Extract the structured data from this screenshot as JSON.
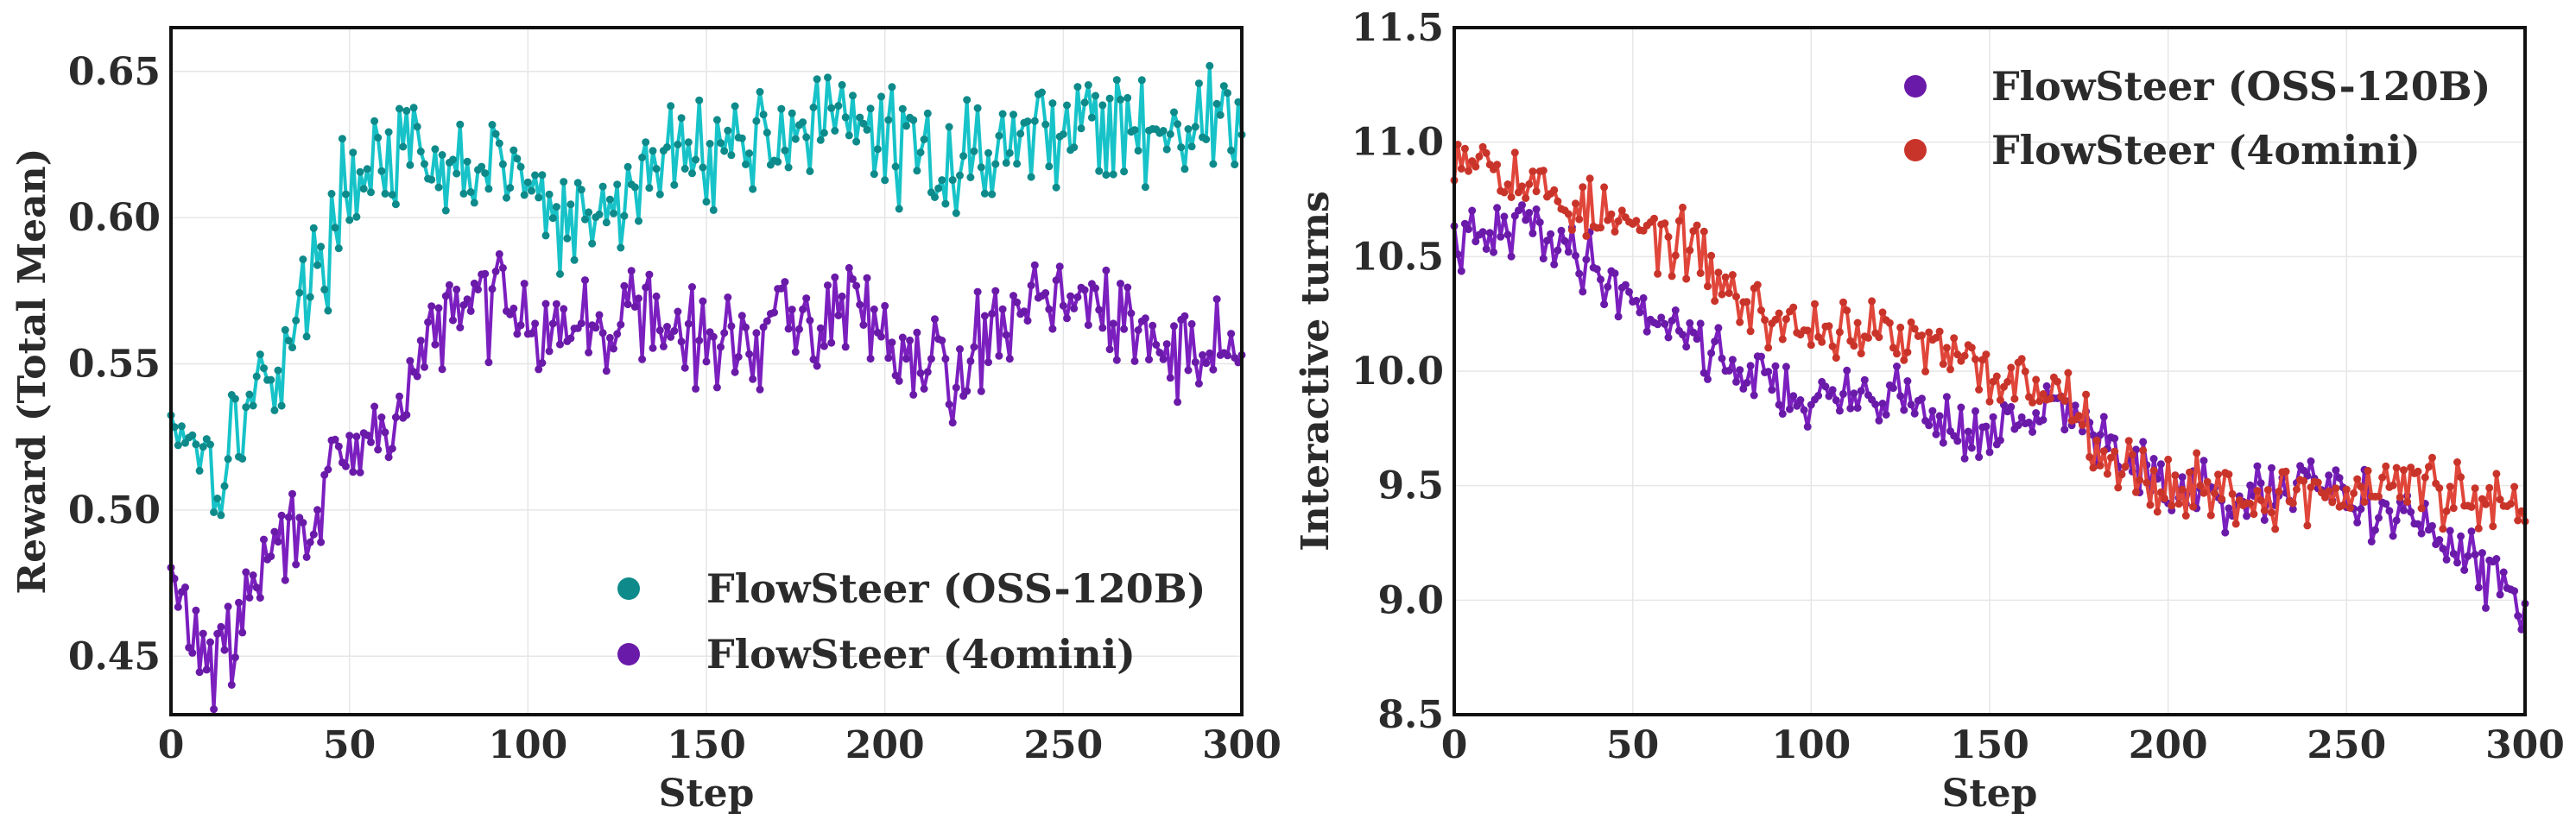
{
  "chart_data": [
    {
      "type": "line",
      "xlabel": "Step",
      "ylabel": "Reward (Total Mean)",
      "xlim": [
        0,
        300
      ],
      "ylim": [
        0.43,
        0.665
      ],
      "xticks": [
        0,
        50,
        100,
        150,
        200,
        250,
        300
      ],
      "xtick_labels": [
        "0",
        "50",
        "100",
        "150",
        "200",
        "250",
        "300"
      ],
      "yticks": [
        0.45,
        0.5,
        0.55,
        0.6,
        0.65
      ],
      "ytick_labels": [
        "0.45",
        "0.50",
        "0.55",
        "0.60",
        "0.65"
      ],
      "grid": true,
      "legend_position": "bottom-right",
      "series": [
        {
          "name": "FlowSteer (OSS-120B)",
          "line_color": "#17c3c8",
          "marker_color": "#0e8a8a",
          "anchors": [
            [
              0,
              0.532
            ],
            [
              5,
              0.528
            ],
            [
              10,
              0.52
            ],
            [
              14,
              0.512
            ],
            [
              18,
              0.53
            ],
            [
              25,
              0.54
            ],
            [
              32,
              0.555
            ],
            [
              40,
              0.58
            ],
            [
              45,
              0.596
            ],
            [
              50,
              0.61
            ],
            [
              55,
              0.622
            ],
            [
              60,
              0.62
            ],
            [
              65,
              0.622
            ],
            [
              75,
              0.612
            ],
            [
              85,
              0.618
            ],
            [
              95,
              0.616
            ],
            [
              100,
              0.612
            ],
            [
              105,
              0.603
            ],
            [
              110,
              0.596
            ],
            [
              115,
              0.596
            ],
            [
              120,
              0.6
            ],
            [
              130,
              0.61
            ],
            [
              140,
              0.622
            ],
            [
              150,
              0.625
            ],
            [
              160,
              0.625
            ],
            [
              170,
              0.63
            ],
            [
              180,
              0.632
            ],
            [
              190,
              0.63
            ],
            [
              200,
              0.63
            ],
            [
              205,
              0.622
            ],
            [
              210,
              0.62
            ],
            [
              220,
              0.62
            ],
            [
              230,
              0.623
            ],
            [
              240,
              0.628
            ],
            [
              250,
              0.632
            ],
            [
              255,
              0.637
            ],
            [
              260,
              0.632
            ],
            [
              265,
              0.627
            ],
            [
              270,
              0.63
            ],
            [
              280,
              0.633
            ],
            [
              290,
              0.632
            ],
            [
              300,
              0.633
            ]
          ],
          "noise": 0.009,
          "seed": 17
        },
        {
          "name": "FlowSteer (4omini)",
          "line_color": "#7b1fbf",
          "marker_color": "#6a1aa8",
          "anchors": [
            [
              0,
              0.475
            ],
            [
              5,
              0.462
            ],
            [
              10,
              0.45
            ],
            [
              14,
              0.446
            ],
            [
              18,
              0.458
            ],
            [
              25,
              0.48
            ],
            [
              32,
              0.49
            ],
            [
              40,
              0.5
            ],
            [
              50,
              0.515
            ],
            [
              60,
              0.528
            ],
            [
              65,
              0.535
            ],
            [
              70,
              0.555
            ],
            [
              80,
              0.568
            ],
            [
              90,
              0.572
            ],
            [
              95,
              0.578
            ],
            [
              100,
              0.568
            ],
            [
              110,
              0.562
            ],
            [
              120,
              0.562
            ],
            [
              130,
              0.568
            ],
            [
              140,
              0.562
            ],
            [
              150,
              0.556
            ],
            [
              160,
              0.558
            ],
            [
              170,
              0.562
            ],
            [
              180,
              0.565
            ],
            [
              190,
              0.57
            ],
            [
              200,
              0.565
            ],
            [
              205,
              0.555
            ],
            [
              210,
              0.552
            ],
            [
              215,
              0.555
            ],
            [
              220,
              0.548
            ],
            [
              230,
              0.56
            ],
            [
              240,
              0.572
            ],
            [
              245,
              0.578
            ],
            [
              250,
              0.576
            ],
            [
              260,
              0.566
            ],
            [
              270,
              0.56
            ],
            [
              280,
              0.555
            ],
            [
              290,
              0.556
            ],
            [
              300,
              0.556
            ]
          ],
          "noise": 0.008,
          "seed": 29
        }
      ]
    },
    {
      "type": "line",
      "xlabel": "Step",
      "ylabel": "Interactive turns",
      "xlim": [
        0,
        300
      ],
      "ylim": [
        8.5,
        11.5
      ],
      "xticks": [
        0,
        50,
        100,
        150,
        200,
        250,
        300
      ],
      "xtick_labels": [
        "0",
        "50",
        "100",
        "150",
        "200",
        "250",
        "300"
      ],
      "yticks": [
        8.5,
        9.0,
        9.5,
        10.0,
        10.5,
        11.0,
        11.5
      ],
      "ytick_labels": [
        "8.5",
        "9.0",
        "9.5",
        "10.0",
        "10.5",
        "11.0",
        "11.5"
      ],
      "grid": true,
      "legend_position": "top-right",
      "series": [
        {
          "name": "FlowSteer (OSS-120B)",
          "line_color": "#7b1fbf",
          "marker_color": "#6a1aa8",
          "anchors": [
            [
              0,
              10.55
            ],
            [
              10,
              10.58
            ],
            [
              20,
              10.65
            ],
            [
              25,
              10.62
            ],
            [
              35,
              10.5
            ],
            [
              45,
              10.38
            ],
            [
              55,
              10.25
            ],
            [
              65,
              10.18
            ],
            [
              75,
              10.05
            ],
            [
              85,
              9.98
            ],
            [
              95,
              9.9
            ],
            [
              100,
              9.85
            ],
            [
              110,
              9.88
            ],
            [
              120,
              9.92
            ],
            [
              130,
              9.85
            ],
            [
              140,
              9.75
            ],
            [
              150,
              9.72
            ],
            [
              160,
              9.78
            ],
            [
              170,
              9.85
            ],
            [
              180,
              9.72
            ],
            [
              190,
              9.6
            ],
            [
              200,
              9.48
            ],
            [
              210,
              9.45
            ],
            [
              220,
              9.42
            ],
            [
              230,
              9.45
            ],
            [
              240,
              9.5
            ],
            [
              250,
              9.48
            ],
            [
              260,
              9.4
            ],
            [
              270,
              9.35
            ],
            [
              280,
              9.2
            ],
            [
              290,
              9.1
            ],
            [
              300,
              9.0
            ]
          ],
          "noise": 0.065,
          "seed": 41
        },
        {
          "name": "FlowSteer (4omini)",
          "line_color": "#e0463a",
          "marker_color": "#c9342a",
          "anchors": [
            [
              0,
              10.98
            ],
            [
              10,
              10.95
            ],
            [
              20,
              10.82
            ],
            [
              30,
              10.75
            ],
            [
              40,
              10.68
            ],
            [
              50,
              10.62
            ],
            [
              60,
              10.58
            ],
            [
              70,
              10.48
            ],
            [
              80,
              10.3
            ],
            [
              90,
              10.22
            ],
            [
              100,
              10.18
            ],
            [
              110,
              10.2
            ],
            [
              120,
              10.15
            ],
            [
              130,
              10.12
            ],
            [
              140,
              10.05
            ],
            [
              150,
              9.98
            ],
            [
              160,
              9.95
            ],
            [
              170,
              9.92
            ],
            [
              175,
              9.85
            ],
            [
              180,
              9.72
            ],
            [
              185,
              9.6
            ],
            [
              190,
              9.55
            ],
            [
              200,
              9.5
            ],
            [
              210,
              9.5
            ],
            [
              220,
              9.45
            ],
            [
              230,
              9.45
            ],
            [
              240,
              9.48
            ],
            [
              250,
              9.45
            ],
            [
              260,
              9.5
            ],
            [
              270,
              9.52
            ],
            [
              280,
              9.45
            ],
            [
              290,
              9.42
            ],
            [
              300,
              9.35
            ]
          ],
          "noise": 0.07,
          "seed": 53
        }
      ]
    }
  ]
}
